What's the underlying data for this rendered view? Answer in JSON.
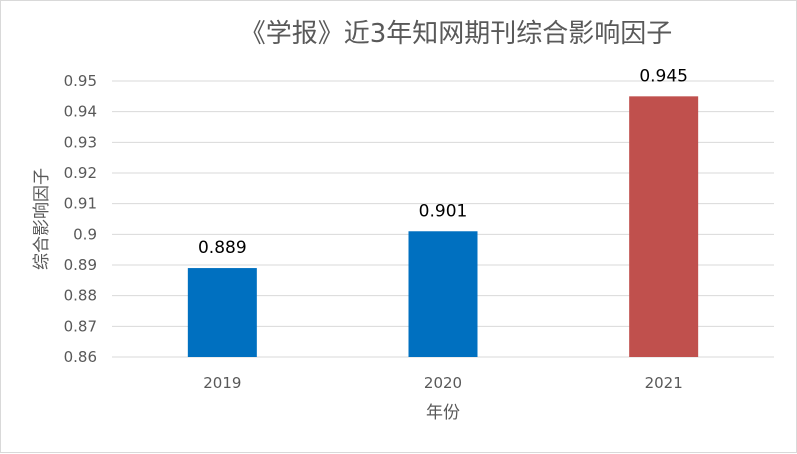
{
  "chart_data": {
    "type": "bar",
    "title": "《学报》近3年知网期刊综合影响因子",
    "xlabel": "年份",
    "ylabel": "综合影响因子",
    "categories": [
      "2019",
      "2020",
      "2021"
    ],
    "values": [
      0.889,
      0.901,
      0.945
    ],
    "data_labels": [
      "0.889",
      "0.901",
      "0.945"
    ],
    "ylim": [
      0.86,
      0.95
    ],
    "yticks": [
      "0.86",
      "0.87",
      "0.88",
      "0.89",
      "0.9",
      "0.91",
      "0.92",
      "0.93",
      "0.94",
      "0.95"
    ],
    "grid": true,
    "legend": "none",
    "colors": {
      "bars": [
        "#0070C0",
        "#0070C0",
        "#C0504D"
      ],
      "grid": "#d9d9d9",
      "text": "#595959"
    }
  }
}
